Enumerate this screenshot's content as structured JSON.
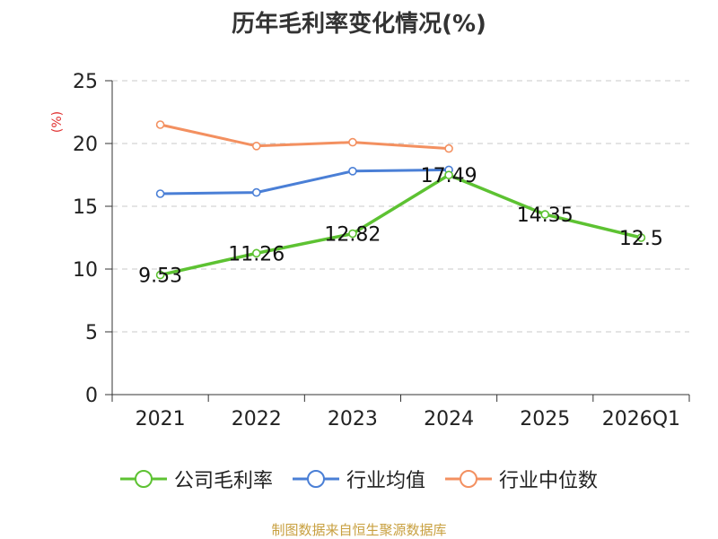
{
  "title": "历年毛利率变化情况(%)",
  "unit_label": "(%)",
  "source_text": "制图数据来自恒生聚源数据库",
  "chart_data": {
    "type": "line",
    "title": "历年毛利率变化情况(%)",
    "xlabel": "",
    "ylabel": "(%)",
    "categories": [
      "2021",
      "2022",
      "2023",
      "2024",
      "2025",
      "2026Q1"
    ],
    "ylim": [
      0,
      25
    ],
    "yticks": [
      0,
      5,
      10,
      15,
      20,
      25
    ],
    "grid": true,
    "legend_position": "bottom",
    "series": [
      {
        "name": "公司毛利率",
        "color": "#5dc232",
        "values": [
          9.53,
          11.26,
          12.82,
          17.49,
          14.35,
          12.5
        ],
        "labels": [
          "9.53",
          "11.26",
          "12.82",
          "17.49",
          "14.35",
          "12.5"
        ]
      },
      {
        "name": "行业均值",
        "color": "#4a7fd6",
        "values": [
          16.0,
          16.1,
          17.8,
          17.9,
          null,
          null
        ]
      },
      {
        "name": "行业中位数",
        "color": "#f39060",
        "values": [
          21.5,
          19.8,
          20.1,
          19.6,
          null,
          null
        ]
      }
    ]
  }
}
